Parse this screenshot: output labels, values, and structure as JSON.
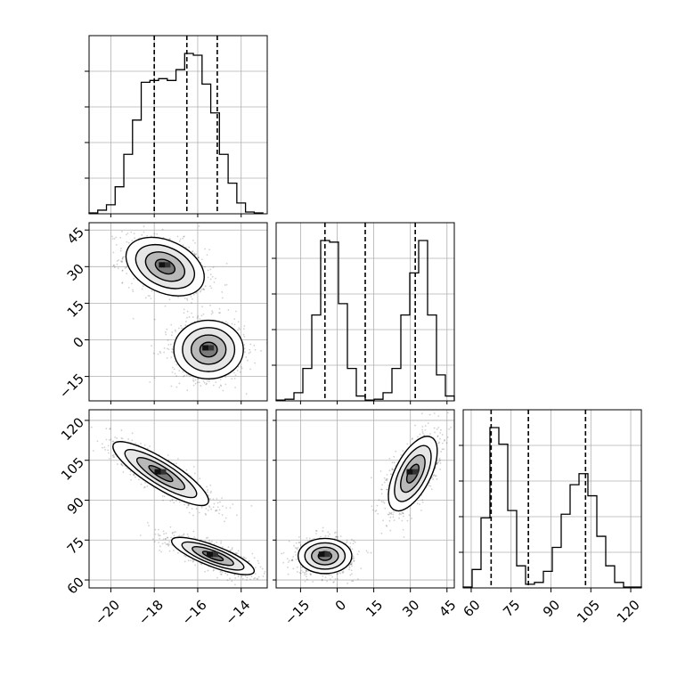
{
  "chart_data": {
    "type": "corner",
    "grid": true,
    "parameters": [
      {
        "ticks": [
          -20,
          -18,
          -16,
          -14
        ],
        "tick_labels": [
          "−20",
          "−18",
          "−16",
          "−14"
        ],
        "range": [
          -21.0,
          -12.8
        ]
      },
      {
        "ticks": [
          -15,
          0,
          15,
          30,
          45
        ],
        "tick_labels": [
          "−15",
          "0",
          "15",
          "30",
          "45"
        ],
        "range": [
          -25,
          48
        ]
      },
      {
        "ticks": [
          60,
          75,
          90,
          105,
          120
        ],
        "tick_labels": [
          "60",
          "75",
          "90",
          "105",
          "120"
        ],
        "range": [
          57,
          124
        ]
      }
    ],
    "histograms": [
      {
        "param": 0,
        "bin_edges": [
          -21.0,
          -20.6,
          -20.2,
          -19.8,
          -19.4,
          -19.0,
          -18.6,
          -18.2,
          -17.8,
          -17.4,
          -17.0,
          -16.6,
          -16.2,
          -15.8,
          -15.4,
          -15.0,
          -14.6,
          -14.2,
          -13.8,
          -13.4,
          -13.0
        ],
        "counts": [
          0.005,
          0.02,
          0.05,
          0.15,
          0.33,
          0.52,
          0.73,
          0.74,
          0.75,
          0.74,
          0.8,
          0.89,
          0.88,
          0.72,
          0.56,
          0.33,
          0.17,
          0.06,
          0.01,
          0.005
        ],
        "quantiles": [
          -18.0,
          -16.5,
          -15.1
        ]
      },
      {
        "param": 1,
        "bin_edges": [
          -25.0,
          -21.35,
          -17.7,
          -14.05,
          -10.4,
          -6.75,
          -3.1,
          0.55,
          4.2,
          7.85,
          11.5,
          15.15,
          18.8,
          22.45,
          26.1,
          29.75,
          33.4,
          37.05,
          40.7,
          44.35,
          48.0
        ],
        "counts": [
          0.005,
          0.01,
          0.05,
          0.2,
          0.53,
          0.99,
          0.98,
          0.6,
          0.2,
          0.03,
          0.005,
          0.01,
          0.05,
          0.2,
          0.53,
          0.79,
          0.99,
          0.53,
          0.16,
          0.03
        ],
        "quantiles": [
          -5.0,
          11.5,
          32.0
        ]
      },
      {
        "param": 2,
        "bin_edges": [
          57.0,
          60.35,
          63.7,
          67.05,
          70.4,
          73.75,
          77.1,
          80.45,
          83.8,
          87.15,
          90.5,
          93.85,
          97.2,
          100.55,
          103.9,
          107.25,
          110.6,
          113.95,
          117.3,
          120.65,
          124.0
        ],
        "counts": [
          0.005,
          0.1,
          0.38,
          0.87,
          0.78,
          0.42,
          0.12,
          0.02,
          0.03,
          0.09,
          0.22,
          0.4,
          0.56,
          0.62,
          0.5,
          0.28,
          0.12,
          0.03,
          0.005,
          0.005
        ],
        "quantiles": [
          67.5,
          81.5,
          103.0
        ]
      }
    ],
    "contour_panels": [
      {
        "x_param": 0,
        "y_param": 1,
        "clusters": [
          {
            "center": [
              -17.5,
              30.0
            ],
            "sx": 0.9,
            "sy": 6.0,
            "rho": -0.35
          },
          {
            "center": [
              -15.5,
              -4.0
            ],
            "sx": 0.8,
            "sy": 6.0,
            "rho": 0.0
          }
        ]
      },
      {
        "x_param": 0,
        "y_param": 2,
        "clusters": [
          {
            "center": [
              -17.7,
              100.0
            ],
            "sx": 1.1,
            "sy": 6.0,
            "rho": -0.85
          },
          {
            "center": [
              -15.3,
              69.0
            ],
            "sx": 0.95,
            "sy": 3.5,
            "rho": -0.8
          }
        ]
      },
      {
        "x_param": 1,
        "y_param": 2,
        "clusters": [
          {
            "center": [
              -5.0,
              69.0
            ],
            "sx": 5.5,
            "sy": 3.3,
            "rho": 0.0
          },
          {
            "center": [
              31.0,
              100.0
            ],
            "sx": 5.0,
            "sy": 7.0,
            "rho": 0.6
          }
        ]
      }
    ],
    "contour_levels_sigma": [
      0.5,
      1.0,
      1.5,
      2.0
    ]
  }
}
